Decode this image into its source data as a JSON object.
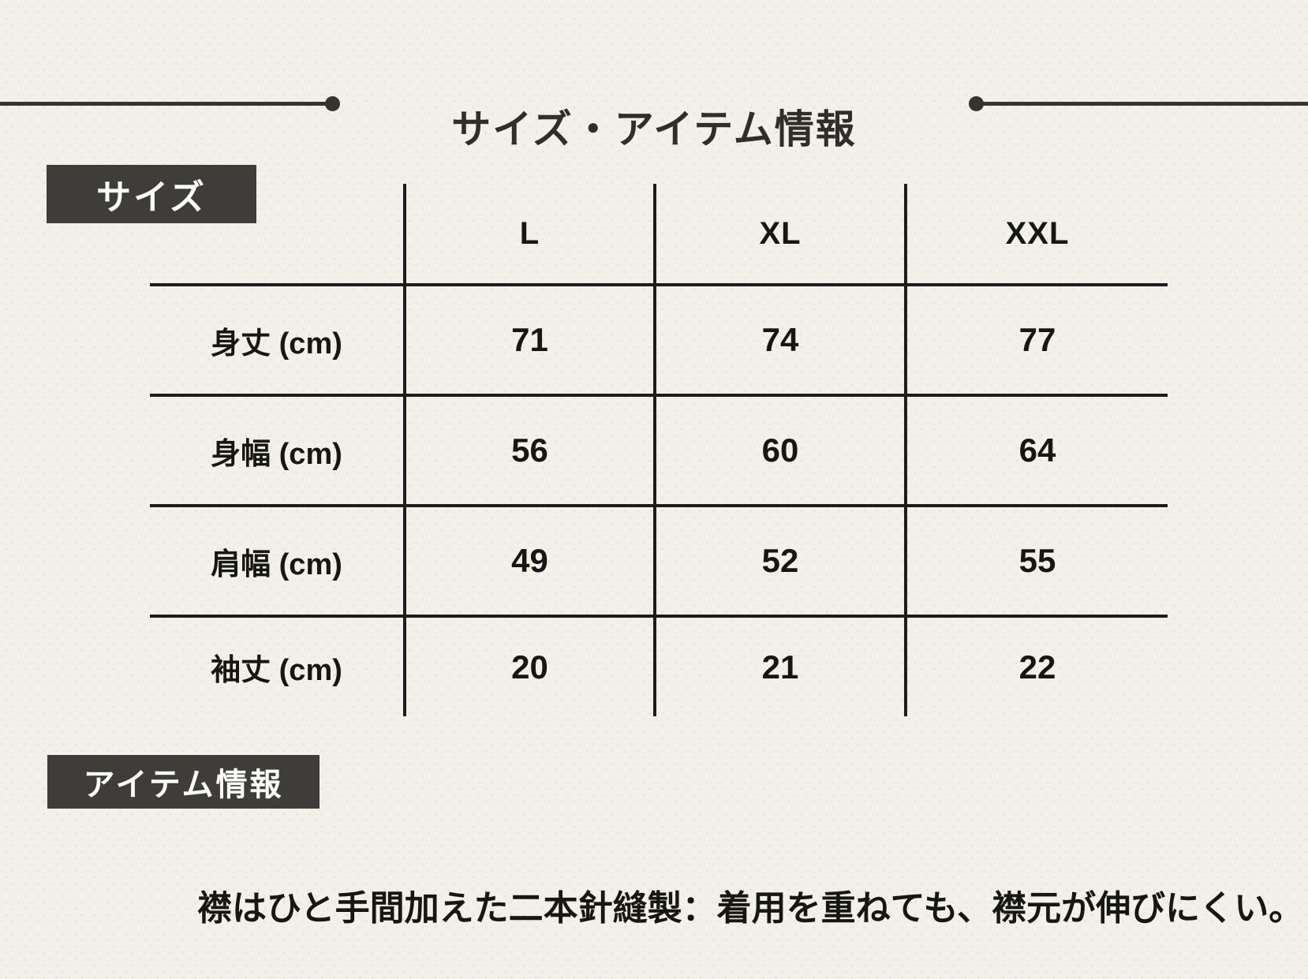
{
  "page": {
    "title": "サイズ・アイテム情報"
  },
  "colors": {
    "background": "#f2f0e8",
    "texture_dot": "#e7e4d6",
    "badge_background": "#3f3d39",
    "badge_text": "#ffffff",
    "line": "#1d1c1a",
    "text": "#161613"
  },
  "size_section": {
    "badge_label": "サイズ"
  },
  "table": {
    "columns": [
      "L",
      "XL",
      "XXL"
    ],
    "rows": [
      {
        "label": "身丈 (cm)",
        "values": [
          71,
          74,
          77
        ]
      },
      {
        "label": "身幅 (cm)",
        "values": [
          56,
          60,
          64
        ]
      },
      {
        "label": "肩幅 (cm)",
        "values": [
          49,
          52,
          55
        ]
      },
      {
        "label": "袖丈 (cm)",
        "values": [
          20,
          21,
          22
        ]
      }
    ]
  },
  "item_section": {
    "badge_label": "アイテム情報",
    "description": "襟はひと手間加えた二本針縫製：着用を重ねても、襟元が伸びにくい。"
  }
}
